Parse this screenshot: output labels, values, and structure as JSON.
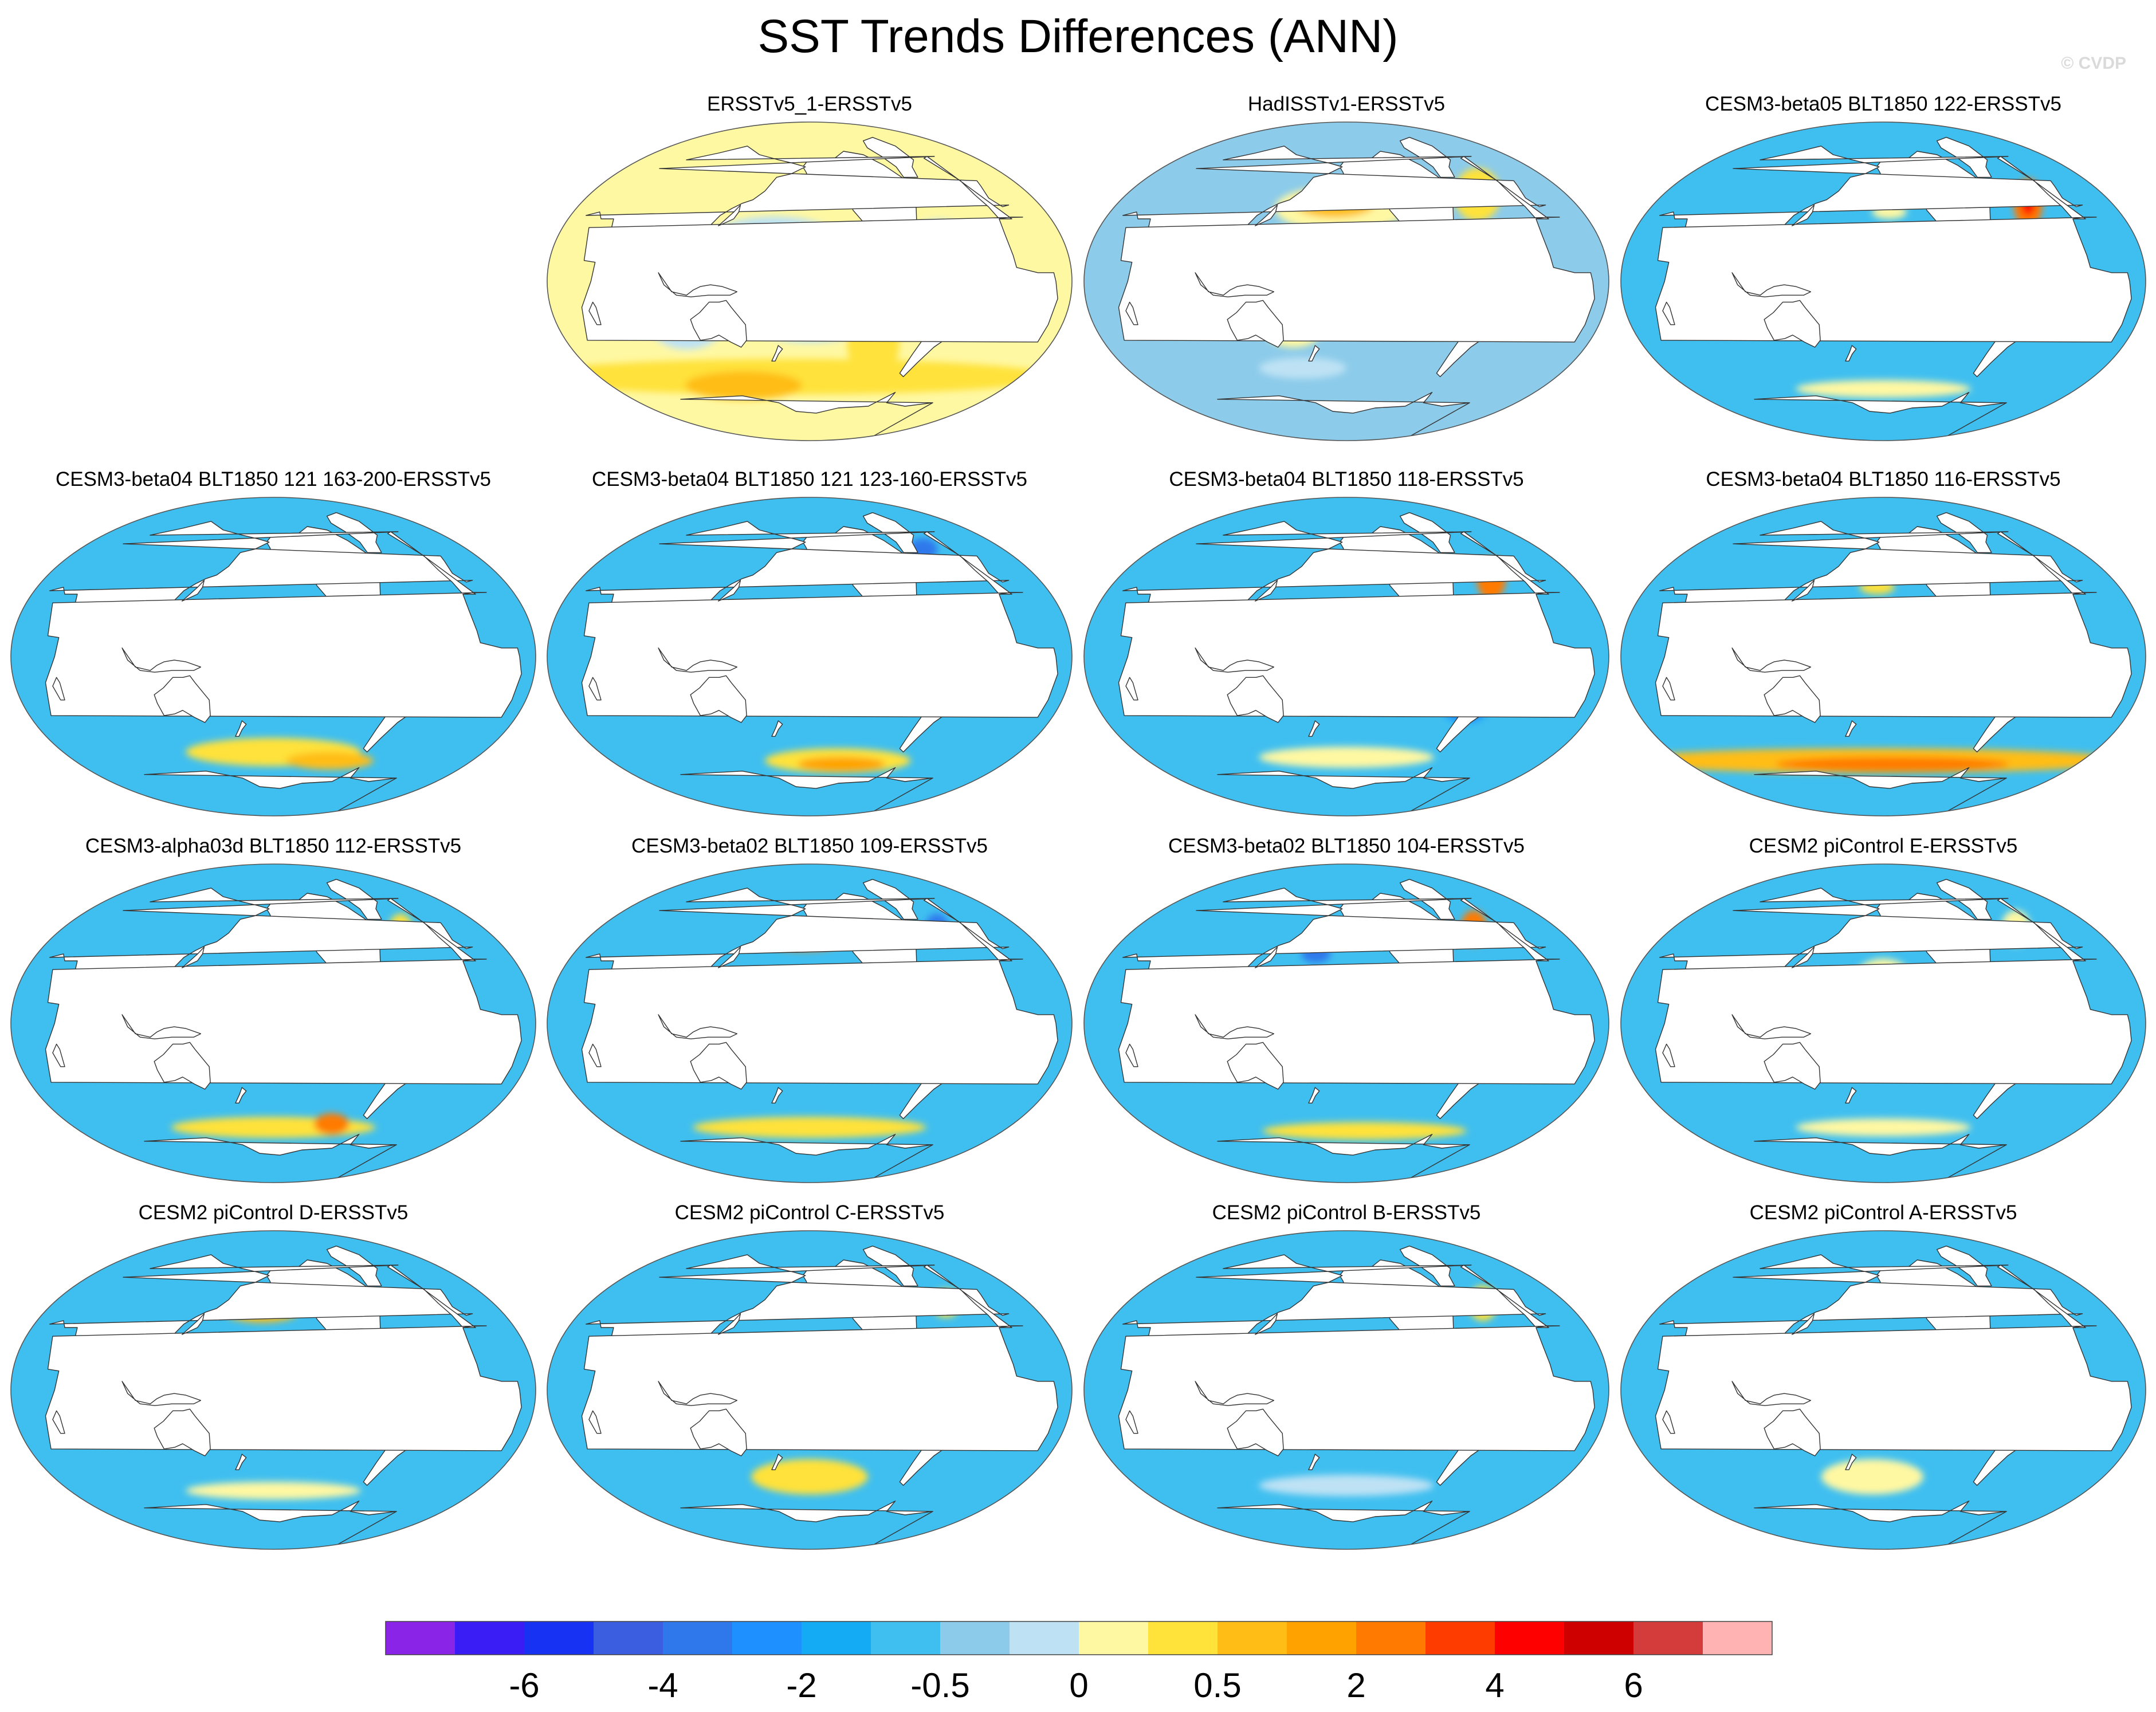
{
  "title": "SST Trends Differences (ANN)",
  "copyright": "© CVDP",
  "colors": {
    "land": "#ffffff",
    "coast": "#333333",
    "fill_levels": [
      "#8a25e8",
      "#3a1cf5",
      "#1732f2",
      "#3b5de0",
      "#2f78ec",
      "#1e90ff",
      "#14abf4",
      "#3fbff0",
      "#8ccbea",
      "#bee2f4",
      "#fff8a3",
      "#ffe23a",
      "#ffbd16",
      "#ffa200",
      "#ff7a00",
      "#ff3c00",
      "#ff0000",
      "#cf0000",
      "#d43b3b",
      "#ffb3b3"
    ]
  },
  "chart_data": {
    "type": "contour-map-grid",
    "projection": "Robinson (Pacific-centered)",
    "colorbar": {
      "orientation": "horizontal",
      "n_colors": 20,
      "tick_labels": [
        "-6",
        "-4",
        "-2",
        "-0.5",
        "0",
        "0.5",
        "2",
        "4",
        "6"
      ],
      "tick_boundary_index": [
        2,
        4,
        6,
        8,
        10,
        12,
        14,
        16,
        18
      ]
    },
    "panels": [
      {
        "title": "ERSSTv5_1-ERSSTv5",
        "row": 0,
        "col": 1,
        "background_level": 10,
        "features": [
          {
            "lon": 175,
            "lat": 15,
            "rx": 55,
            "ry": 22,
            "level": 9
          },
          {
            "lon": 110,
            "lat": -25,
            "rx": 25,
            "ry": 14,
            "level": 9
          },
          {
            "lon": 200,
            "lat": -20,
            "rx": 45,
            "ry": 15,
            "level": 9
          },
          {
            "lon": 180,
            "lat": -55,
            "rx": 180,
            "ry": 10,
            "level": 11
          },
          {
            "lon": 250,
            "lat": -35,
            "rx": 18,
            "ry": 22,
            "level": 11
          },
          {
            "lon": 130,
            "lat": -60,
            "rx": 40,
            "ry": 8,
            "level": 12
          },
          {
            "lon": 290,
            "lat": 10,
            "rx": 30,
            "ry": 25,
            "level": 9
          }
        ]
      },
      {
        "title": "HadISSTv1-ERSSTv5",
        "row": 0,
        "col": 2,
        "background_level": 8,
        "features": [
          {
            "lon": 180,
            "lat": 0,
            "rx": 60,
            "ry": 20,
            "level": 9
          },
          {
            "lon": 195,
            "lat": 42,
            "rx": 45,
            "ry": 13,
            "level": 10
          },
          {
            "lon": 190,
            "lat": 45,
            "rx": 28,
            "ry": 8,
            "level": 12
          },
          {
            "lon": 320,
            "lat": 50,
            "rx": 16,
            "ry": 15,
            "level": 11
          },
          {
            "lon": 160,
            "lat": -30,
            "rx": 18,
            "ry": 8,
            "level": 10
          },
          {
            "lon": 160,
            "lat": -50,
            "rx": 30,
            "ry": 6,
            "level": 9
          }
        ]
      },
      {
        "title": "CESM3-beta05 BLT1850 122-ERSSTv5",
        "row": 0,
        "col": 3,
        "background_level": 7,
        "features": [
          {
            "lon": 200,
            "lat": 5,
            "rx": 70,
            "ry": 18,
            "level": 8
          },
          {
            "lon": 325,
            "lat": 45,
            "rx": 10,
            "ry": 14,
            "level": 14
          },
          {
            "lon": 325,
            "lat": 45,
            "rx": 5,
            "ry": 7,
            "level": 16
          },
          {
            "lon": 205,
            "lat": 40,
            "rx": 12,
            "ry": 4,
            "level": 10
          },
          {
            "lon": 200,
            "lat": -62,
            "rx": 60,
            "ry": 5,
            "level": 10
          }
        ]
      },
      {
        "title": "CESM3-beta04 BLT1850 121 163-200-ERSSTv5",
        "row": 1,
        "col": 0,
        "background_level": 7,
        "features": [
          {
            "lon": 195,
            "lat": 0,
            "rx": 60,
            "ry": 14,
            "level": 10
          },
          {
            "lon": 200,
            "lat": 2,
            "rx": 45,
            "ry": 9,
            "level": 12
          },
          {
            "lon": 220,
            "lat": -12,
            "rx": 30,
            "ry": 10,
            "level": 11
          },
          {
            "lon": 200,
            "lat": -55,
            "rx": 60,
            "ry": 8,
            "level": 11
          },
          {
            "lon": 260,
            "lat": -60,
            "rx": 30,
            "ry": 5,
            "level": 12
          }
        ]
      },
      {
        "title": "CESM3-beta04 BLT1850 121 123-160-ERSSTv5",
        "row": 1,
        "col": 1,
        "background_level": 7,
        "features": [
          {
            "lon": 200,
            "lat": 10,
            "rx": 60,
            "ry": 15,
            "level": 8
          },
          {
            "lon": 185,
            "lat": 22,
            "rx": 15,
            "ry": 5,
            "level": 10
          },
          {
            "lon": 230,
            "lat": -60,
            "rx": 50,
            "ry": 7,
            "level": 11
          },
          {
            "lon": 235,
            "lat": -62,
            "rx": 30,
            "ry": 4,
            "level": 13
          },
          {
            "lon": 325,
            "lat": 62,
            "rx": 10,
            "ry": 6,
            "level": 4
          }
        ]
      },
      {
        "title": "CESM3-beta04 BLT1850 118-ERSSTv5",
        "row": 1,
        "col": 2,
        "background_level": 7,
        "features": [
          {
            "lon": 200,
            "lat": 0,
            "rx": 70,
            "ry": 15,
            "level": 8
          },
          {
            "lon": 325,
            "lat": 45,
            "rx": 10,
            "ry": 12,
            "level": 14
          },
          {
            "lon": 200,
            "lat": -58,
            "rx": 60,
            "ry": 6,
            "level": 10
          },
          {
            "lon": 290,
            "lat": -30,
            "rx": 15,
            "ry": 8,
            "level": 5
          }
        ]
      },
      {
        "title": "CESM3-beta04 BLT1850 116-ERSSTv5",
        "row": 1,
        "col": 3,
        "background_level": 7,
        "features": [
          {
            "lon": 200,
            "lat": 5,
            "rx": 70,
            "ry": 15,
            "level": 8
          },
          {
            "lon": 190,
            "lat": -60,
            "rx": 175,
            "ry": 7,
            "level": 12
          },
          {
            "lon": 210,
            "lat": -62,
            "rx": 80,
            "ry": 4,
            "level": 14
          },
          {
            "lon": 195,
            "lat": 40,
            "rx": 12,
            "ry": 4,
            "level": 11
          }
        ]
      },
      {
        "title": "CESM3-alpha03d BLT1850 112-ERSSTv5",
        "row": 2,
        "col": 0,
        "background_level": 7,
        "features": [
          {
            "lon": 200,
            "lat": 5,
            "rx": 65,
            "ry": 15,
            "level": 8
          },
          {
            "lon": 200,
            "lat": -60,
            "rx": 70,
            "ry": 6,
            "level": 11
          },
          {
            "lon": 260,
            "lat": -58,
            "rx": 12,
            "ry": 6,
            "level": 14
          },
          {
            "lon": 325,
            "lat": 55,
            "rx": 8,
            "ry": 8,
            "level": 11
          }
        ]
      },
      {
        "title": "CESM3-beta02 BLT1850 109-ERSSTv5",
        "row": 2,
        "col": 1,
        "background_level": 7,
        "features": [
          {
            "lon": 195,
            "lat": 47,
            "rx": 25,
            "ry": 5,
            "level": 14
          },
          {
            "lon": 200,
            "lat": 5,
            "rx": 65,
            "ry": 15,
            "level": 8
          },
          {
            "lon": 200,
            "lat": -60,
            "rx": 80,
            "ry": 6,
            "level": 11
          },
          {
            "lon": 325,
            "lat": 55,
            "rx": 8,
            "ry": 8,
            "level": 4
          }
        ]
      },
      {
        "title": "CESM3-beta02 BLT1850 104-ERSSTv5",
        "row": 2,
        "col": 2,
        "background_level": 7,
        "features": [
          {
            "lon": 200,
            "lat": 0,
            "rx": 70,
            "ry": 15,
            "level": 8
          },
          {
            "lon": 325,
            "lat": 55,
            "rx": 9,
            "ry": 10,
            "level": 14
          },
          {
            "lon": 220,
            "lat": -62,
            "rx": 70,
            "ry": 5,
            "level": 11
          },
          {
            "lon": 175,
            "lat": 40,
            "rx": 10,
            "ry": 5,
            "level": 4
          }
        ]
      },
      {
        "title": "CESM2 piControl E-ERSSTv5",
        "row": 2,
        "col": 3,
        "background_level": 7,
        "features": [
          {
            "lon": 200,
            "lat": 25,
            "rx": 20,
            "ry": 12,
            "level": 10
          },
          {
            "lon": 200,
            "lat": 5,
            "rx": 65,
            "ry": 15,
            "level": 8
          },
          {
            "lon": 200,
            "lat": -60,
            "rx": 60,
            "ry": 5,
            "level": 10
          },
          {
            "lon": 330,
            "lat": 55,
            "rx": 10,
            "ry": 10,
            "level": 10
          }
        ]
      },
      {
        "title": "CESM2 piControl D-ERSSTv5",
        "row": 3,
        "col": 0,
        "background_level": 7,
        "features": [
          {
            "lon": 190,
            "lat": 45,
            "rx": 25,
            "ry": 6,
            "level": 12
          },
          {
            "lon": 200,
            "lat": 5,
            "rx": 65,
            "ry": 14,
            "level": 8
          },
          {
            "lon": 200,
            "lat": -58,
            "rx": 60,
            "ry": 5,
            "level": 10
          }
        ]
      },
      {
        "title": "CESM2 piControl C-ERSSTv5",
        "row": 3,
        "col": 1,
        "background_level": 7,
        "features": [
          {
            "lon": 200,
            "lat": 5,
            "rx": 65,
            "ry": 15,
            "level": 8
          },
          {
            "lon": 325,
            "lat": 50,
            "rx": 10,
            "ry": 8,
            "level": 11
          },
          {
            "lon": 200,
            "lat": -50,
            "rx": 40,
            "ry": 10,
            "level": 11
          }
        ]
      },
      {
        "title": "CESM2 piControl B-ERSSTv5",
        "row": 3,
        "col": 2,
        "background_level": 7,
        "features": [
          {
            "lon": 200,
            "lat": 5,
            "rx": 65,
            "ry": 15,
            "level": 8
          },
          {
            "lon": 325,
            "lat": 50,
            "rx": 10,
            "ry": 10,
            "level": 11
          },
          {
            "lon": 200,
            "lat": -55,
            "rx": 60,
            "ry": 6,
            "level": 9
          }
        ]
      },
      {
        "title": "CESM2 piControl A-ERSSTv5",
        "row": 3,
        "col": 3,
        "background_level": 7,
        "features": [
          {
            "lon": 200,
            "lat": 5,
            "rx": 65,
            "ry": 15,
            "level": 8
          },
          {
            "lon": 190,
            "lat": -50,
            "rx": 35,
            "ry": 10,
            "level": 10
          }
        ]
      }
    ]
  }
}
